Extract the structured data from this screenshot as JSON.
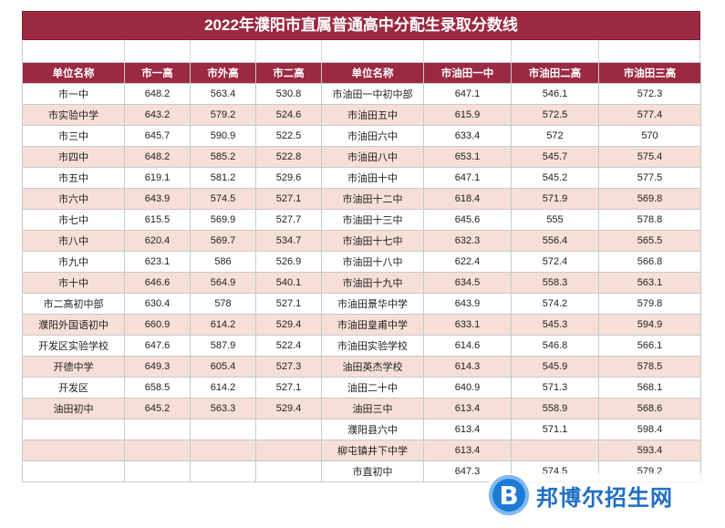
{
  "title": "2022年濮阳市直属普通高中分配生录取分数线",
  "headers": [
    "单位名称",
    "市一高",
    "市外高",
    "市二高",
    "单位名称",
    "市油田一中",
    "市油田二高",
    "市油田三高"
  ],
  "rows": [
    [
      "市一中",
      "648.2",
      "563.4",
      "530.8",
      "市油田一中初中部",
      "647.1",
      "546.1",
      "572.3"
    ],
    [
      "市实验中学",
      "643.2",
      "579.2",
      "524.6",
      "市油田五中",
      "615.9",
      "572.5",
      "577.4"
    ],
    [
      "市三中",
      "645.7",
      "590.9",
      "522.5",
      "市油田六中",
      "633.4",
      "572",
      "570"
    ],
    [
      "市四中",
      "648.2",
      "585.2",
      "522.8",
      "市油田八中",
      "653.1",
      "545.7",
      "575.4"
    ],
    [
      "市五中",
      "619.1",
      "581.2",
      "529.6",
      "市油田十中",
      "647.1",
      "545.2",
      "577.5"
    ],
    [
      "市六中",
      "643.9",
      "574.5",
      "527.1",
      "市油田十二中",
      "618.4",
      "571.9",
      "569.8"
    ],
    [
      "市七中",
      "615.5",
      "569.9",
      "527.7",
      "市油田十三中",
      "645.6",
      "555",
      "578.8"
    ],
    [
      "市八中",
      "620.4",
      "569.7",
      "534.7",
      "市油田十七中",
      "632.3",
      "556.4",
      "565.5"
    ],
    [
      "市九中",
      "623.1",
      "586",
      "526.9",
      "市油田十八中",
      "622.4",
      "572.4",
      "566.8"
    ],
    [
      "市十中",
      "646.6",
      "564.9",
      "540.1",
      "市油田十九中",
      "634.5",
      "558.3",
      "563.1"
    ],
    [
      "市二高初中部",
      "630.4",
      "578",
      "527.1",
      "市油田景华中学",
      "643.9",
      "574.2",
      "579.8"
    ],
    [
      "濮阳外国语初中",
      "660.9",
      "614.2",
      "529.4",
      "市油田皇甫中学",
      "633.1",
      "545.3",
      "594.9"
    ],
    [
      "开发区实验学校",
      "647.6",
      "587.9",
      "522.4",
      "市油田实验学校",
      "614.6",
      "546.8",
      "566.1"
    ],
    [
      "开德中学",
      "649.3",
      "605.4",
      "527.3",
      "油田英杰学校",
      "614.3",
      "545.9",
      "578.5"
    ],
    [
      "开发区",
      "658.5",
      "614.2",
      "527.1",
      "油田二十中",
      "640.9",
      "571.3",
      "568.1"
    ],
    [
      "油田初中",
      "645.2",
      "563.3",
      "529.4",
      "油田三中",
      "613.4",
      "558.9",
      "568.6"
    ],
    [
      "",
      "",
      "",
      "",
      "濮阳县六中",
      "613.4",
      "571.1",
      "598.4"
    ],
    [
      "",
      "",
      "",
      "",
      "柳屯镇井下中学",
      "613.4",
      "",
      "593.4"
    ],
    [
      "",
      "",
      "",
      "",
      "市直初中",
      "647.3",
      "574.5",
      "579.2"
    ]
  ],
  "watermark": {
    "badge_letter": "B",
    "text": "邦博尔招生网",
    "color": "#1f6fc4"
  }
}
